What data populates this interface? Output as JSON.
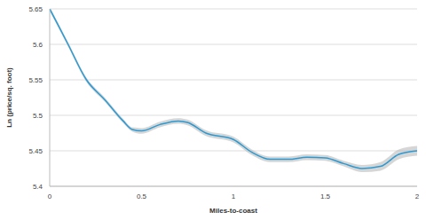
{
  "chart_data": {
    "type": "line",
    "x_label": "Miles-to-coast",
    "y_label": "Ln (price/sq. foot)",
    "x": [
      0,
      0.1,
      0.2,
      0.3,
      0.4,
      0.45,
      0.5,
      0.6,
      0.7,
      0.75,
      0.85,
      1.0,
      1.1,
      1.2,
      1.3,
      1.4,
      1.5,
      1.6,
      1.7,
      1.8,
      1.9,
      2.0
    ],
    "series": [
      {
        "color": "#2b9ad3",
        "values": [
          5.65,
          5.6,
          5.55,
          5.522,
          5.492,
          5.48,
          5.478,
          5.487,
          5.492,
          5.49,
          5.475,
          5.466,
          5.448,
          5.438,
          5.438,
          5.441,
          5.44,
          5.432,
          5.425,
          5.428,
          5.445,
          5.45
        ],
        "ci_lower": [
          5.647,
          5.597,
          5.547,
          5.519,
          5.489,
          5.477,
          5.474,
          5.483,
          5.488,
          5.486,
          5.471,
          5.462,
          5.444,
          5.434,
          5.434,
          5.437,
          5.436,
          5.428,
          5.42,
          5.422,
          5.438,
          5.443
        ],
        "ci_upper": [
          5.653,
          5.603,
          5.553,
          5.525,
          5.495,
          5.483,
          5.482,
          5.491,
          5.496,
          5.494,
          5.479,
          5.47,
          5.452,
          5.442,
          5.442,
          5.445,
          5.444,
          5.436,
          5.43,
          5.434,
          5.452,
          5.457
        ]
      }
    ],
    "xlim": [
      0,
      2
    ],
    "xticks": [
      0,
      0.5,
      1,
      1.5,
      2
    ],
    "ylim": [
      5.4,
      5.65
    ],
    "yticks": [
      5.4,
      5.45,
      5.5,
      5.55,
      5.6,
      5.65
    ],
    "grid": true
  }
}
